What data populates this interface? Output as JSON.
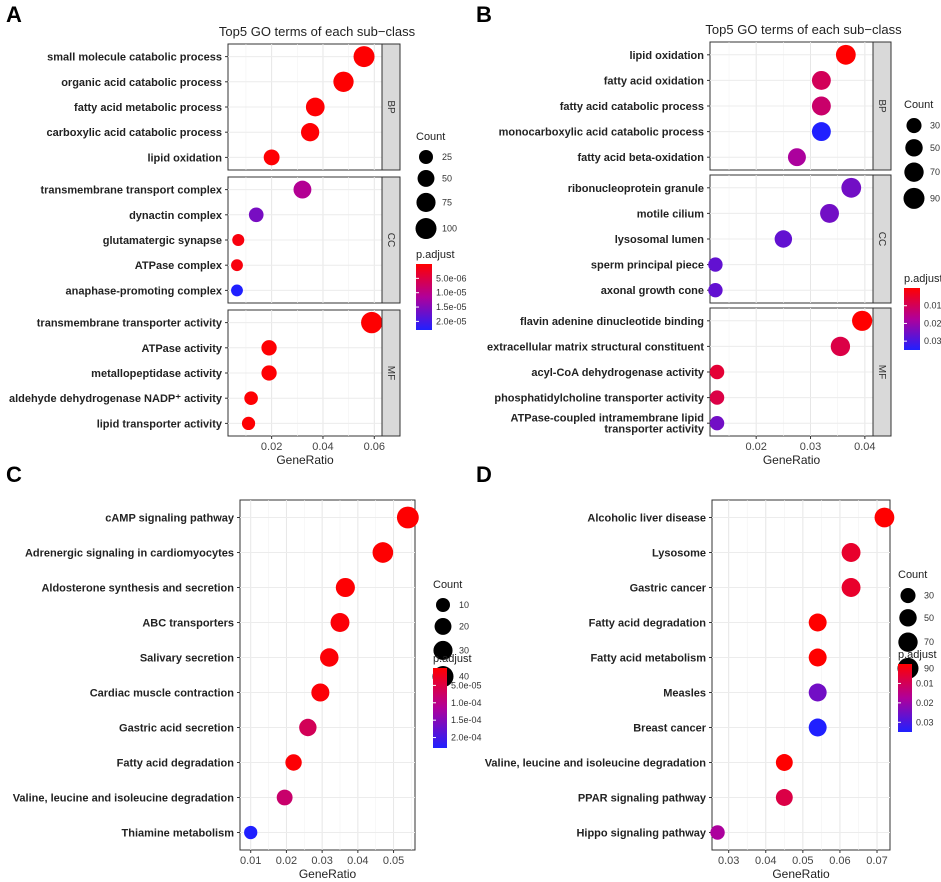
{
  "chart_data": [
    {
      "panel": "A",
      "type": "scatter",
      "title": "Top5 GO terms of each sub−class",
      "xlabel": "GeneRatio",
      "xlim": [
        0.003,
        0.063
      ],
      "xticks": [
        0.02,
        0.04,
        0.06
      ],
      "xtick_labels": [
        "0.02",
        "0.04",
        "0.06"
      ],
      "facets": [
        {
          "name": "BP",
          "categories": [
            "small molecule catabolic process",
            "organic acid catabolic process",
            "fatty acid metabolic process",
            "carboxylic acid catabolic process",
            "lipid oxidation"
          ],
          "x": [
            0.056,
            0.048,
            0.037,
            0.035,
            0.02
          ],
          "count": [
            100,
            90,
            70,
            65,
            40
          ],
          "p_adjust": [
            1e-07,
            1e-07,
            2e-07,
            2e-07,
            2e-07
          ]
        },
        {
          "name": "CC",
          "categories": [
            "transmembrane transport complex",
            "dynactin complex",
            "glutamatergic synapse",
            "ATPase complex",
            "anaphase-promoting complex"
          ],
          "x": [
            0.032,
            0.014,
            0.007,
            0.0065,
            0.0065
          ],
          "count": [
            60,
            30,
            13,
            12,
            12
          ],
          "p_adjust": [
            1.1e-05,
            1.6e-05,
            1e-06,
            1e-06,
            2.3e-05
          ]
        },
        {
          "name": "MF",
          "categories": [
            "transmembrane transporter activity",
            "ATPase activity",
            "metallopeptidase activity",
            "aldehyde dehydrogenase NADP⁺ activity",
            "lipid transporter activity"
          ],
          "x": [
            0.059,
            0.019,
            0.019,
            0.012,
            0.011
          ],
          "count": [
            105,
            35,
            35,
            22,
            20
          ],
          "p_adjust": [
            1e-07,
            2e-07,
            2e-07,
            2e-07,
            2e-07
          ]
        }
      ],
      "legend_count": {
        "title": "Count",
        "labels": [
          "25",
          "50",
          "75",
          "100"
        ],
        "values": [
          25,
          50,
          75,
          100
        ]
      },
      "legend_color": {
        "title": "p.adjust",
        "labels": [
          "5.0e-06",
          "1.0e-05",
          "1.5e-05",
          "2.0e-05"
        ],
        "values": [
          5e-06,
          1e-05,
          1.5e-05,
          2e-05
        ],
        "range": [
          0,
          2.3e-05
        ]
      }
    },
    {
      "panel": "B",
      "type": "scatter",
      "title": "Top5 GO terms of each sub−class",
      "xlabel": "GeneRatio",
      "xlim": [
        0.0115,
        0.0415
      ],
      "xticks": [
        0.02,
        0.03,
        0.04
      ],
      "xtick_labels": [
        "0.02",
        "0.03",
        "0.04"
      ],
      "facets": [
        {
          "name": "BP",
          "categories": [
            "lipid oxidation",
            "fatty acid oxidation",
            "fatty acid catabolic process",
            "monocarboxylic acid catabolic process",
            "fatty acid beta-oxidation"
          ],
          "x": [
            0.0365,
            0.032,
            0.032,
            0.032,
            0.0275
          ],
          "count": [
            75,
            65,
            65,
            65,
            55
          ],
          "p_adjust": [
            0.0,
            0.01,
            0.012,
            0.035,
            0.018
          ]
        },
        {
          "name": "CC",
          "categories": [
            "ribonucleoprotein granule",
            "motile cilium",
            "lysosomal lumen",
            "sperm principal piece",
            "axonal growth cone"
          ],
          "x": [
            0.0375,
            0.0335,
            0.025,
            0.0125,
            0.0125
          ],
          "count": [
            75,
            65,
            50,
            25,
            25
          ],
          "p_adjust": [
            0.025,
            0.025,
            0.027,
            0.027,
            0.027
          ]
        },
        {
          "name": "MF",
          "categories": [
            "flavin adenine dinucleotide binding",
            "extracellular matrix structural constituent",
            "acyl-CoA dehydrogenase activity",
            "phosphatidylcholine transporter activity",
            "ATPase-coupled intramembrane lipid transporter activity"
          ],
          "x": [
            0.0395,
            0.0355,
            0.0128,
            0.0128,
            0.0128
          ],
          "count": [
            80,
            70,
            25,
            25,
            25
          ],
          "p_adjust": [
            0.0,
            0.008,
            0.006,
            0.008,
            0.025
          ]
        }
      ],
      "legend_count": {
        "title": "Count",
        "labels": [
          "30",
          "50",
          "70",
          "90"
        ],
        "values": [
          30,
          50,
          70,
          90
        ]
      },
      "legend_color": {
        "title": "p.adjust",
        "labels": [
          "0.01",
          "0.02",
          "0.03"
        ],
        "values": [
          0.01,
          0.02,
          0.03
        ],
        "range": [
          0,
          0.035
        ]
      }
    },
    {
      "panel": "C",
      "type": "scatter",
      "title": "",
      "xlabel": "GeneRatio",
      "xlim": [
        0.007,
        0.056
      ],
      "xticks": [
        0.01,
        0.02,
        0.03,
        0.04,
        0.05
      ],
      "xtick_labels": [
        "0.01",
        "0.02",
        "0.03",
        "0.04",
        "0.05"
      ],
      "facets": [
        {
          "name": "",
          "categories": [
            "cAMP signaling pathway",
            "Adrenergic signaling in cardiomyocytes",
            "Aldosterone synthesis and secretion",
            "ABC transporters",
            "Salivary secretion",
            "Cardiac muscle contraction",
            "Gastric acid secretion",
            "Fatty acid degradation",
            "Valine, leucine and isoleucine degradation",
            "Thiamine metabolism"
          ],
          "x": [
            0.054,
            0.047,
            0.0365,
            0.035,
            0.032,
            0.0295,
            0.026,
            0.022,
            0.0195,
            0.01
          ],
          "count": [
            45,
            38,
            30,
            29,
            27,
            25,
            22,
            18,
            16,
            8
          ],
          "p_adjust": [
            1e-06,
            1e-06,
            2e-06,
            5e-06,
            5e-06,
            5e-06,
            6.5e-05,
            3e-06,
            8e-05,
            0.00023
          ]
        }
      ],
      "legend_count": {
        "title": "Count",
        "labels": [
          "10",
          "20",
          "30",
          "40"
        ],
        "values": [
          10,
          20,
          30,
          40
        ]
      },
      "legend_color": {
        "title": "p.adjust",
        "labels": [
          "5.0e-05",
          "1.0e-04",
          "1.5e-04",
          "2.0e-04"
        ],
        "values": [
          5e-05,
          0.0001,
          0.00015,
          0.0002
        ],
        "range": [
          0,
          0.00023
        ]
      }
    },
    {
      "panel": "D",
      "type": "scatter",
      "title": "",
      "xlabel": "GeneRatio",
      "xlim": [
        0.0255,
        0.0735
      ],
      "xticks": [
        0.03,
        0.04,
        0.05,
        0.06,
        0.07
      ],
      "xtick_labels": [
        "0.03",
        "0.04",
        "0.05",
        "0.06",
        "0.07"
      ],
      "facets": [
        {
          "name": "",
          "categories": [
            "Alcoholic liver disease",
            "Lysosome",
            "Gastric cancer",
            "Fatty acid degradation",
            "Fatty acid metabolism",
            "Measles",
            "Breast cancer",
            "Valine, leucine and isoleucine degradation",
            "PPAR signaling pathway",
            "Hippo signaling pathway"
          ],
          "x": [
            0.072,
            0.063,
            0.063,
            0.054,
            0.054,
            0.054,
            0.054,
            0.045,
            0.045,
            0.027
          ],
          "count": [
            75,
            65,
            65,
            55,
            55,
            55,
            55,
            45,
            45,
            25
          ],
          "p_adjust": [
            0.0,
            0.005,
            0.005,
            0.0,
            0.0,
            0.025,
            0.035,
            0.0,
            0.008,
            0.018
          ]
        }
      ],
      "legend_count": {
        "title": "Count",
        "labels": [
          "30",
          "50",
          "70",
          "90"
        ],
        "values": [
          30,
          50,
          70,
          90
        ]
      },
      "legend_color": {
        "title": "p.adjust",
        "labels": [
          "0.01",
          "0.02",
          "0.03"
        ],
        "values": [
          0.01,
          0.02,
          0.03
        ],
        "range": [
          0,
          0.035
        ]
      }
    }
  ]
}
